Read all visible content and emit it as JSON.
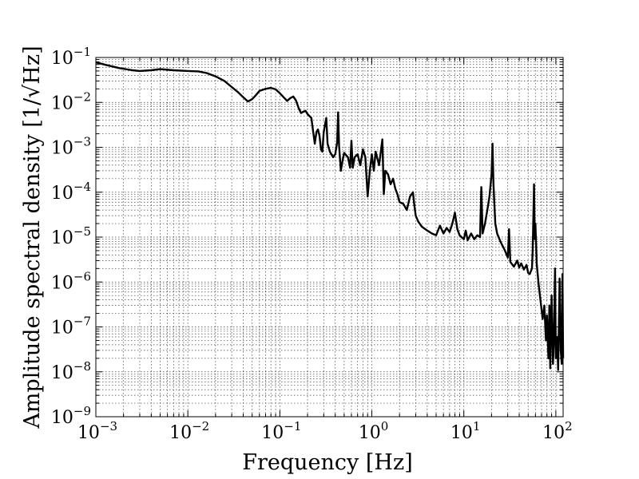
{
  "chart_data": {
    "type": "line",
    "xlabel": "Frequency [Hz]",
    "ylabel": "Amplitude spectral density [1/√Hz]",
    "x_scale": "log",
    "y_scale": "log",
    "xlim": [
      0.001,
      120
    ],
    "ylim": [
      1e-09,
      0.1
    ],
    "grid": true,
    "x_ticks": [
      {
        "base": "10",
        "exp": "−3"
      },
      {
        "base": "10",
        "exp": "−2"
      },
      {
        "base": "10",
        "exp": "−1"
      },
      {
        "base": "10",
        "exp": "0"
      },
      {
        "base": "10",
        "exp": "1"
      },
      {
        "base": "10",
        "exp": "2"
      }
    ],
    "y_ticks": [
      {
        "base": "10",
        "exp": "−9"
      },
      {
        "base": "10",
        "exp": "−8"
      },
      {
        "base": "10",
        "exp": "−7"
      },
      {
        "base": "10",
        "exp": "−6"
      },
      {
        "base": "10",
        "exp": "−5"
      },
      {
        "base": "10",
        "exp": "−4"
      },
      {
        "base": "10",
        "exp": "−3"
      },
      {
        "base": "10",
        "exp": "−2"
      },
      {
        "base": "10",
        "exp": "−1"
      }
    ],
    "series": [
      {
        "color": "#000000",
        "points": [
          [
            0.001,
            0.078
          ],
          [
            0.0013,
            0.068
          ],
          [
            0.0018,
            0.058
          ],
          [
            0.0025,
            0.052
          ],
          [
            0.003,
            0.05
          ],
          [
            0.004,
            0.052
          ],
          [
            0.005,
            0.055
          ],
          [
            0.007,
            0.052
          ],
          [
            0.01,
            0.05
          ],
          [
            0.013,
            0.049
          ],
          [
            0.016,
            0.045
          ],
          [
            0.02,
            0.038
          ],
          [
            0.025,
            0.03
          ],
          [
            0.03,
            0.022
          ],
          [
            0.035,
            0.017
          ],
          [
            0.04,
            0.013
          ],
          [
            0.045,
            0.0105
          ],
          [
            0.05,
            0.0118
          ],
          [
            0.055,
            0.0145
          ],
          [
            0.06,
            0.018
          ],
          [
            0.07,
            0.02
          ],
          [
            0.08,
            0.021
          ],
          [
            0.09,
            0.0195
          ],
          [
            0.1,
            0.016
          ],
          [
            0.11,
            0.013
          ],
          [
            0.12,
            0.0108
          ],
          [
            0.13,
            0.0125
          ],
          [
            0.14,
            0.0135
          ],
          [
            0.15,
            0.011
          ],
          [
            0.16,
            0.0075
          ],
          [
            0.17,
            0.0058
          ],
          [
            0.18,
            0.0062
          ],
          [
            0.19,
            0.0065
          ],
          [
            0.2,
            0.0055
          ],
          [
            0.22,
            0.0045
          ],
          [
            0.24,
            0.0012
          ],
          [
            0.25,
            0.0022
          ],
          [
            0.26,
            0.0025
          ],
          [
            0.27,
            0.0018
          ],
          [
            0.28,
            0.0009
          ],
          [
            0.29,
            0.0008
          ],
          [
            0.3,
            0.0022
          ],
          [
            0.32,
            0.0045
          ],
          [
            0.33,
            0.0012
          ],
          [
            0.35,
            0.0008
          ],
          [
            0.38,
            0.0006
          ],
          [
            0.4,
            0.0007
          ],
          [
            0.42,
            0.0013
          ],
          [
            0.43,
            0.006
          ],
          [
            0.44,
            0.0011
          ],
          [
            0.46,
            0.0003
          ],
          [
            0.48,
            0.0005
          ],
          [
            0.5,
            0.00075
          ],
          [
            0.55,
            0.0006
          ],
          [
            0.58,
            0.00035
          ],
          [
            0.6,
            0.0014
          ],
          [
            0.62,
            0.00035
          ],
          [
            0.65,
            0.0006
          ],
          [
            0.7,
            0.0007
          ],
          [
            0.75,
            0.0004
          ],
          [
            0.8,
            0.0009
          ],
          [
            0.85,
            0.0006
          ],
          [
            0.9,
            8e-05
          ],
          [
            0.95,
            0.0003
          ],
          [
            1.0,
            0.0007
          ],
          [
            1.05,
            0.0003
          ],
          [
            1.1,
            0.0008
          ],
          [
            1.2,
            0.0004
          ],
          [
            1.3,
            0.0015
          ],
          [
            1.35,
            9e-05
          ],
          [
            1.4,
            0.0003
          ],
          [
            1.5,
            0.00025
          ],
          [
            1.6,
            0.00015
          ],
          [
            1.7,
            0.0002
          ],
          [
            1.8,
            0.00012
          ],
          [
            1.9,
            9e-05
          ],
          [
            2.0,
            6e-05
          ],
          [
            2.2,
            5.5e-05
          ],
          [
            2.4,
            4e-05
          ],
          [
            2.6,
            8e-05
          ],
          [
            2.8,
            0.0001
          ],
          [
            2.9,
            5e-05
          ],
          [
            3.0,
            3e-05
          ],
          [
            3.2,
            2.2e-05
          ],
          [
            3.5,
            1.7e-05
          ],
          [
            4.0,
            1.4e-05
          ],
          [
            4.5,
            1.2e-05
          ],
          [
            5.0,
            1.1e-05
          ],
          [
            5.5,
            1.8e-05
          ],
          [
            6.0,
            1.2e-05
          ],
          [
            6.5,
            1.6e-05
          ],
          [
            7.0,
            1.3e-05
          ],
          [
            7.5,
            2e-05
          ],
          [
            8.0,
            3.5e-05
          ],
          [
            8.5,
            1.5e-05
          ],
          [
            9.0,
            1.1e-05
          ],
          [
            10.0,
            9e-06
          ],
          [
            10.5,
            1.4e-05
          ],
          [
            11.0,
            8.5e-06
          ],
          [
            12.0,
            1.2e-05
          ],
          [
            13.0,
            9e-06
          ],
          [
            14.0,
            1.1e-05
          ],
          [
            15.0,
            1e-05
          ],
          [
            15.5,
            0.00013
          ],
          [
            16.0,
            1.2e-05
          ],
          [
            17.0,
            2e-05
          ],
          [
            18.0,
            4e-05
          ],
          [
            19.0,
            8e-05
          ],
          [
            20.0,
            0.00025
          ],
          [
            20.5,
            0.0012
          ],
          [
            21.0,
            0.00015
          ],
          [
            22.0,
            2e-05
          ],
          [
            23.0,
            1.2e-05
          ],
          [
            25.0,
            8e-06
          ],
          [
            28.0,
            5e-06
          ],
          [
            30.0,
            3.5e-06
          ],
          [
            31.0,
            1.5e-05
          ],
          [
            32.0,
            2.8e-06
          ],
          [
            35.0,
            2.2e-06
          ],
          [
            38.0,
            3e-06
          ],
          [
            40.0,
            2.1e-06
          ],
          [
            42.0,
            2.6e-06
          ],
          [
            45.0,
            1.9e-06
          ],
          [
            48.0,
            2.4e-06
          ],
          [
            50.0,
            1.6e-06
          ],
          [
            52.0,
            1.5e-06
          ],
          [
            55.0,
            2e-06
          ],
          [
            56.0,
            5e-06
          ],
          [
            58.0,
            0.00015
          ],
          [
            59.0,
            9e-06
          ],
          [
            60.0,
            2e-05
          ],
          [
            62.0,
            2.5e-06
          ],
          [
            65.0,
            9e-07
          ],
          [
            68.0,
            4e-07
          ],
          [
            72.0,
            1.5e-07
          ],
          [
            75.0,
            3e-07
          ],
          [
            78.0,
            5e-08
          ],
          [
            80.0,
            1.8e-07
          ],
          [
            83.0,
            2e-08
          ],
          [
            85.0,
            3e-07
          ],
          [
            87.0,
            1.2e-08
          ],
          [
            90.0,
            5e-07
          ],
          [
            93.0,
            1.5e-08
          ],
          [
            95.0,
            4e-08
          ],
          [
            98.0,
            2e-06
          ],
          [
            100.0,
            2e-08
          ],
          [
            103.0,
            6e-08
          ],
          [
            106.0,
            1.1e-08
          ],
          [
            110.0,
            1.2e-06
          ],
          [
            113.0,
            3e-08
          ],
          [
            116.0,
            1.5e-08
          ],
          [
            118.0,
            1.5e-06
          ],
          [
            120.0,
            2e-08
          ]
        ]
      }
    ]
  }
}
